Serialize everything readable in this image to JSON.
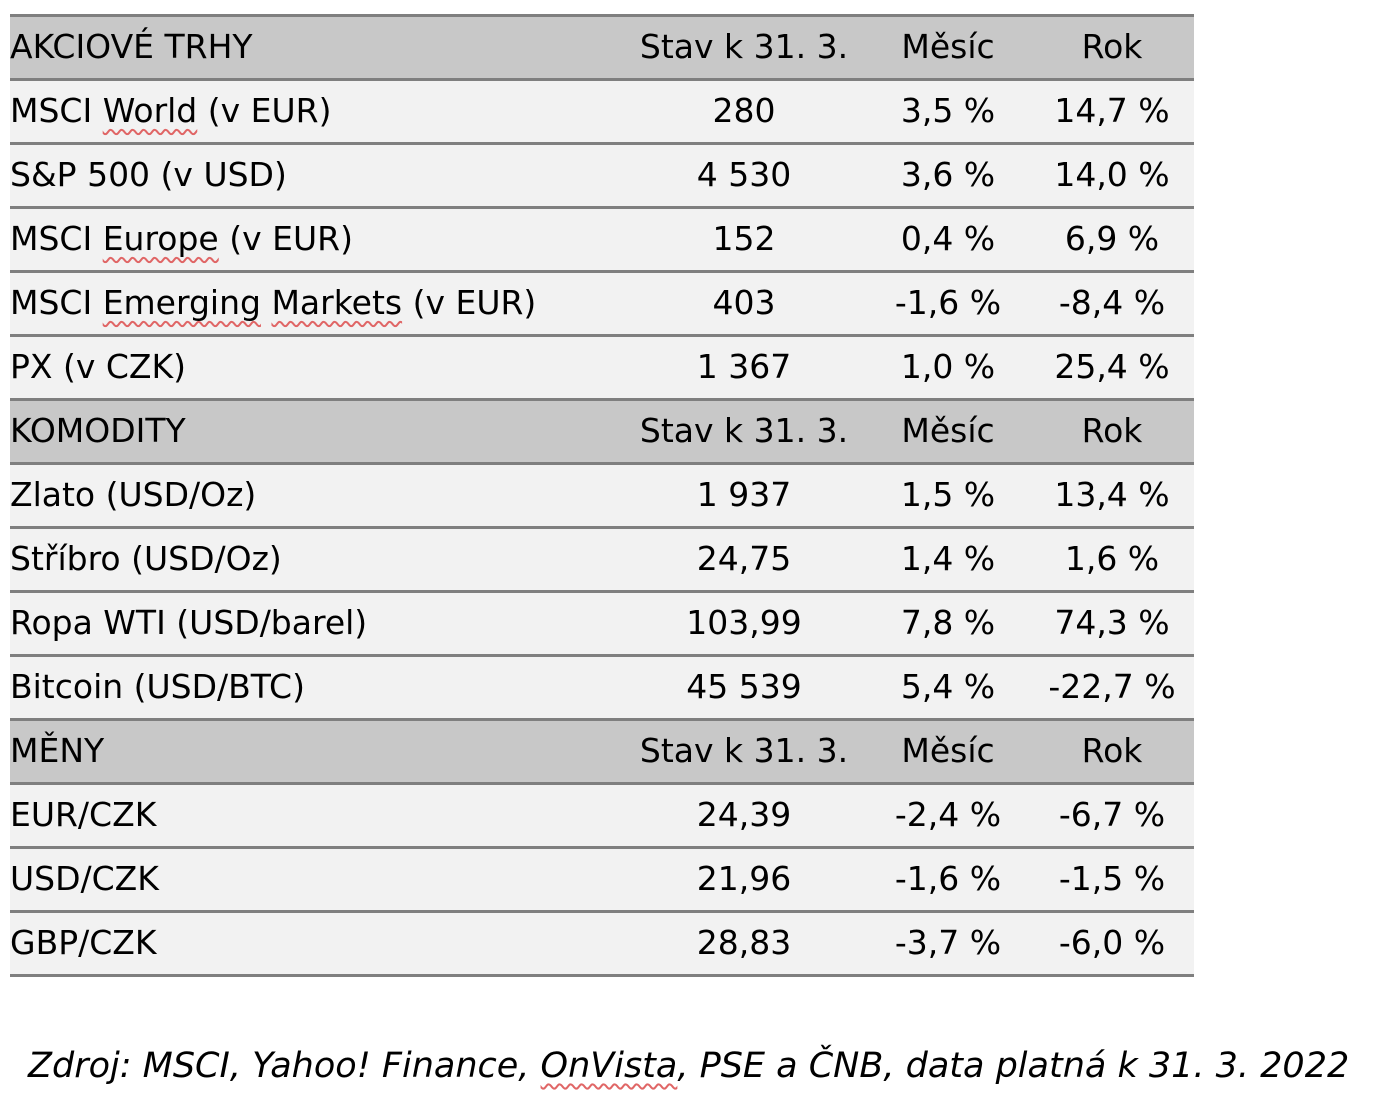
{
  "colors": {
    "header_bg": "#c8c8c8",
    "row_bg": "#f2f2f2",
    "border": "#7f7f7f",
    "squiggle": "#e06666",
    "text": "#000000"
  },
  "columns": {
    "col2": "Stav k 31. 3.",
    "col3": "Měsíc",
    "col4": "Rok"
  },
  "sections": [
    {
      "title": "AKCIOVÉ TRHY",
      "rows": [
        {
          "name": [
            {
              "t": "MSCI "
            },
            {
              "t": "World",
              "sp": true
            },
            {
              "t": " (v EUR)"
            }
          ],
          "value": "280",
          "month": "3,5 %",
          "year": "14,7 %"
        },
        {
          "name": [
            {
              "t": "S&P 500 (v USD)"
            }
          ],
          "value": "4 530",
          "month": "3,6 %",
          "year": "14,0 %"
        },
        {
          "name": [
            {
              "t": "MSCI "
            },
            {
              "t": "Europe",
              "sp": true
            },
            {
              "t": " (v EUR)"
            }
          ],
          "value": "152",
          "month": "0,4 %",
          "year": "6,9 %"
        },
        {
          "name": [
            {
              "t": "MSCI "
            },
            {
              "t": "Emerging",
              "sp": true
            },
            {
              "t": " "
            },
            {
              "t": "Markets",
              "sp": true
            },
            {
              "t": " (v EUR)"
            }
          ],
          "value": "403",
          "month": "-1,6 %",
          "year": "-8,4 %"
        },
        {
          "name": [
            {
              "t": "PX (v CZK)"
            }
          ],
          "value": "1 367",
          "month": "1,0 %",
          "year": "25,4 %"
        }
      ]
    },
    {
      "title": "KOMODITY",
      "rows": [
        {
          "name": [
            {
              "t": "Zlato (USD/Oz)"
            }
          ],
          "value": "1 937",
          "month": "1,5 %",
          "year": "13,4 %"
        },
        {
          "name": [
            {
              "t": "Stříbro (USD/Oz)"
            }
          ],
          "value": "24,75",
          "month": "1,4 %",
          "year": "1,6 %"
        },
        {
          "name": [
            {
              "t": "Ropa WTI (USD/barel)"
            }
          ],
          "value": "103,99",
          "month": "7,8 %",
          "year": "74,3 %"
        },
        {
          "name": [
            {
              "t": "Bitcoin (USD/BTC)"
            }
          ],
          "value": "45 539",
          "month": "5,4 %",
          "year": "-22,7 %"
        }
      ]
    },
    {
      "title": "MĚNY",
      "rows": [
        {
          "name": [
            {
              "t": "EUR/CZK"
            }
          ],
          "value": "24,39",
          "month": "-2,4 %",
          "year": "-6,7 %"
        },
        {
          "name": [
            {
              "t": "USD/CZK"
            }
          ],
          "value": "21,96",
          "month": "-1,6 %",
          "year": "-1,5 %"
        },
        {
          "name": [
            {
              "t": "GBP/CZK"
            }
          ],
          "value": "28,83",
          "month": "-3,7 %",
          "year": "-6,0 %"
        }
      ]
    }
  ],
  "footer": {
    "parts": [
      {
        "t": "Zdroj: MSCI, Yahoo! Finance, "
      },
      {
        "t": "OnVista",
        "sp": true
      },
      {
        "t": ", PSE a ČNB, data platná k 31. 3. 2022"
      }
    ]
  }
}
